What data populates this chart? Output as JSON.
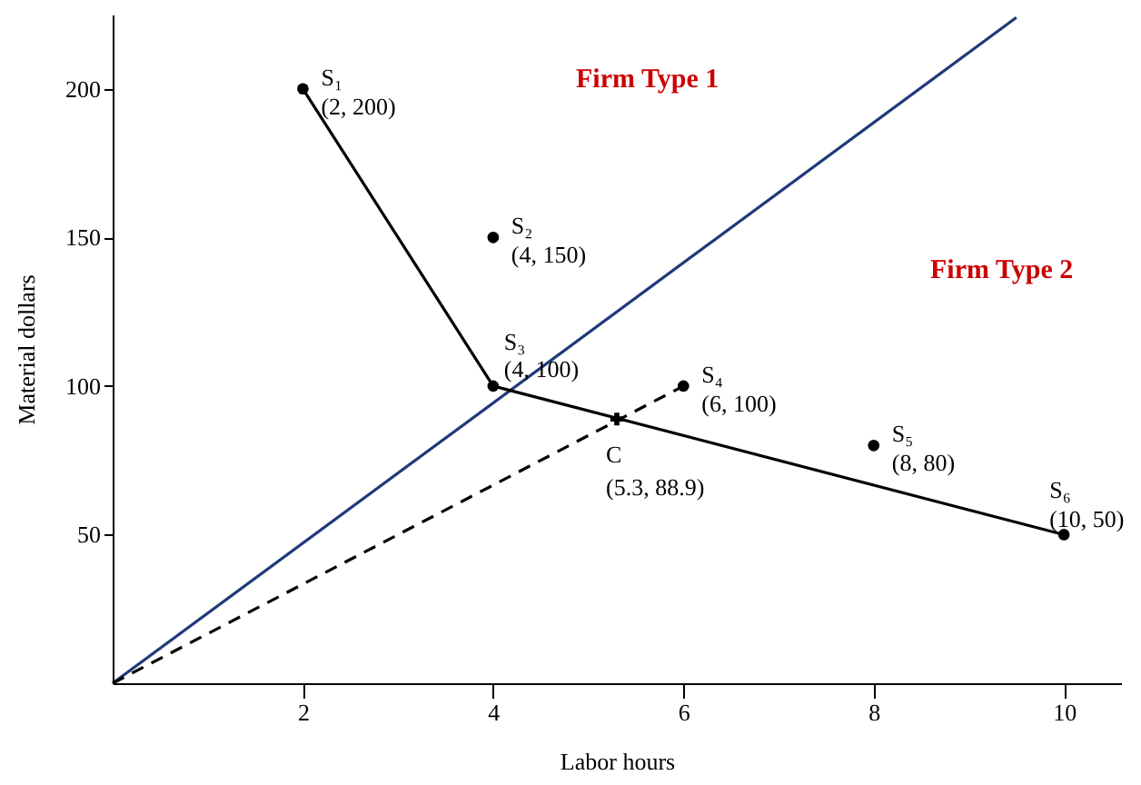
{
  "chart_data": {
    "type": "scatter",
    "xlabel": "Labor hours",
    "ylabel": "Material dollars",
    "xlim": [
      0,
      10.6
    ],
    "ylim": [
      0,
      225
    ],
    "xticks": [
      2,
      4,
      6,
      8,
      10
    ],
    "yticks": [
      50,
      100,
      150,
      200
    ],
    "grid": false,
    "series": [
      {
        "type": "line",
        "color": "#1f3a7a",
        "line_style": "solid",
        "marker": "none",
        "x": [
          0,
          9.5
        ],
        "values": [
          0,
          224
        ]
      },
      {
        "type": "line",
        "color": "#000000",
        "line_style": "solid",
        "marker": "none",
        "x": [
          2,
          4,
          10
        ],
        "values": [
          200,
          100,
          50
        ]
      },
      {
        "type": "line",
        "color": "#000000",
        "line_style": "dashed",
        "marker": "none",
        "x": [
          0,
          6
        ],
        "values": [
          0,
          100
        ]
      },
      {
        "color": "#000000",
        "marker": "circle",
        "x": [
          2,
          4,
          4,
          6,
          8,
          10
        ],
        "values": [
          200,
          150,
          100,
          100,
          80,
          50
        ]
      },
      {
        "color": "#000000",
        "marker": "cross",
        "x": [
          5.3
        ],
        "values": [
          88.9
        ]
      }
    ],
    "annotations": [
      {
        "text": "S₁",
        "x": 2,
        "y": 200
      },
      {
        "text": "(2, 200)",
        "x": 2,
        "y": 200
      },
      {
        "text": "S₂",
        "x": 4,
        "y": 150
      },
      {
        "text": "(4, 150)",
        "x": 4,
        "y": 150
      },
      {
        "text": "S₃",
        "x": 4,
        "y": 100
      },
      {
        "text": "(4, 100)",
        "x": 4,
        "y": 100
      },
      {
        "text": "S₄",
        "x": 6,
        "y": 100
      },
      {
        "text": "(6, 100)",
        "x": 6,
        "y": 100
      },
      {
        "text": "S₅",
        "x": 8,
        "y": 80
      },
      {
        "text": "(8, 80)",
        "x": 8,
        "y": 80
      },
      {
        "text": "S₆",
        "x": 10,
        "y": 50
      },
      {
        "text": "(10, 50)",
        "x": 10,
        "y": 50
      },
      {
        "text": "C",
        "x": 5.3,
        "y": 88.9
      },
      {
        "text": "(5.3, 88.9)",
        "x": 5.3,
        "y": 88.9
      },
      "Firm Type 1",
      "Firm Type 2"
    ]
  }
}
